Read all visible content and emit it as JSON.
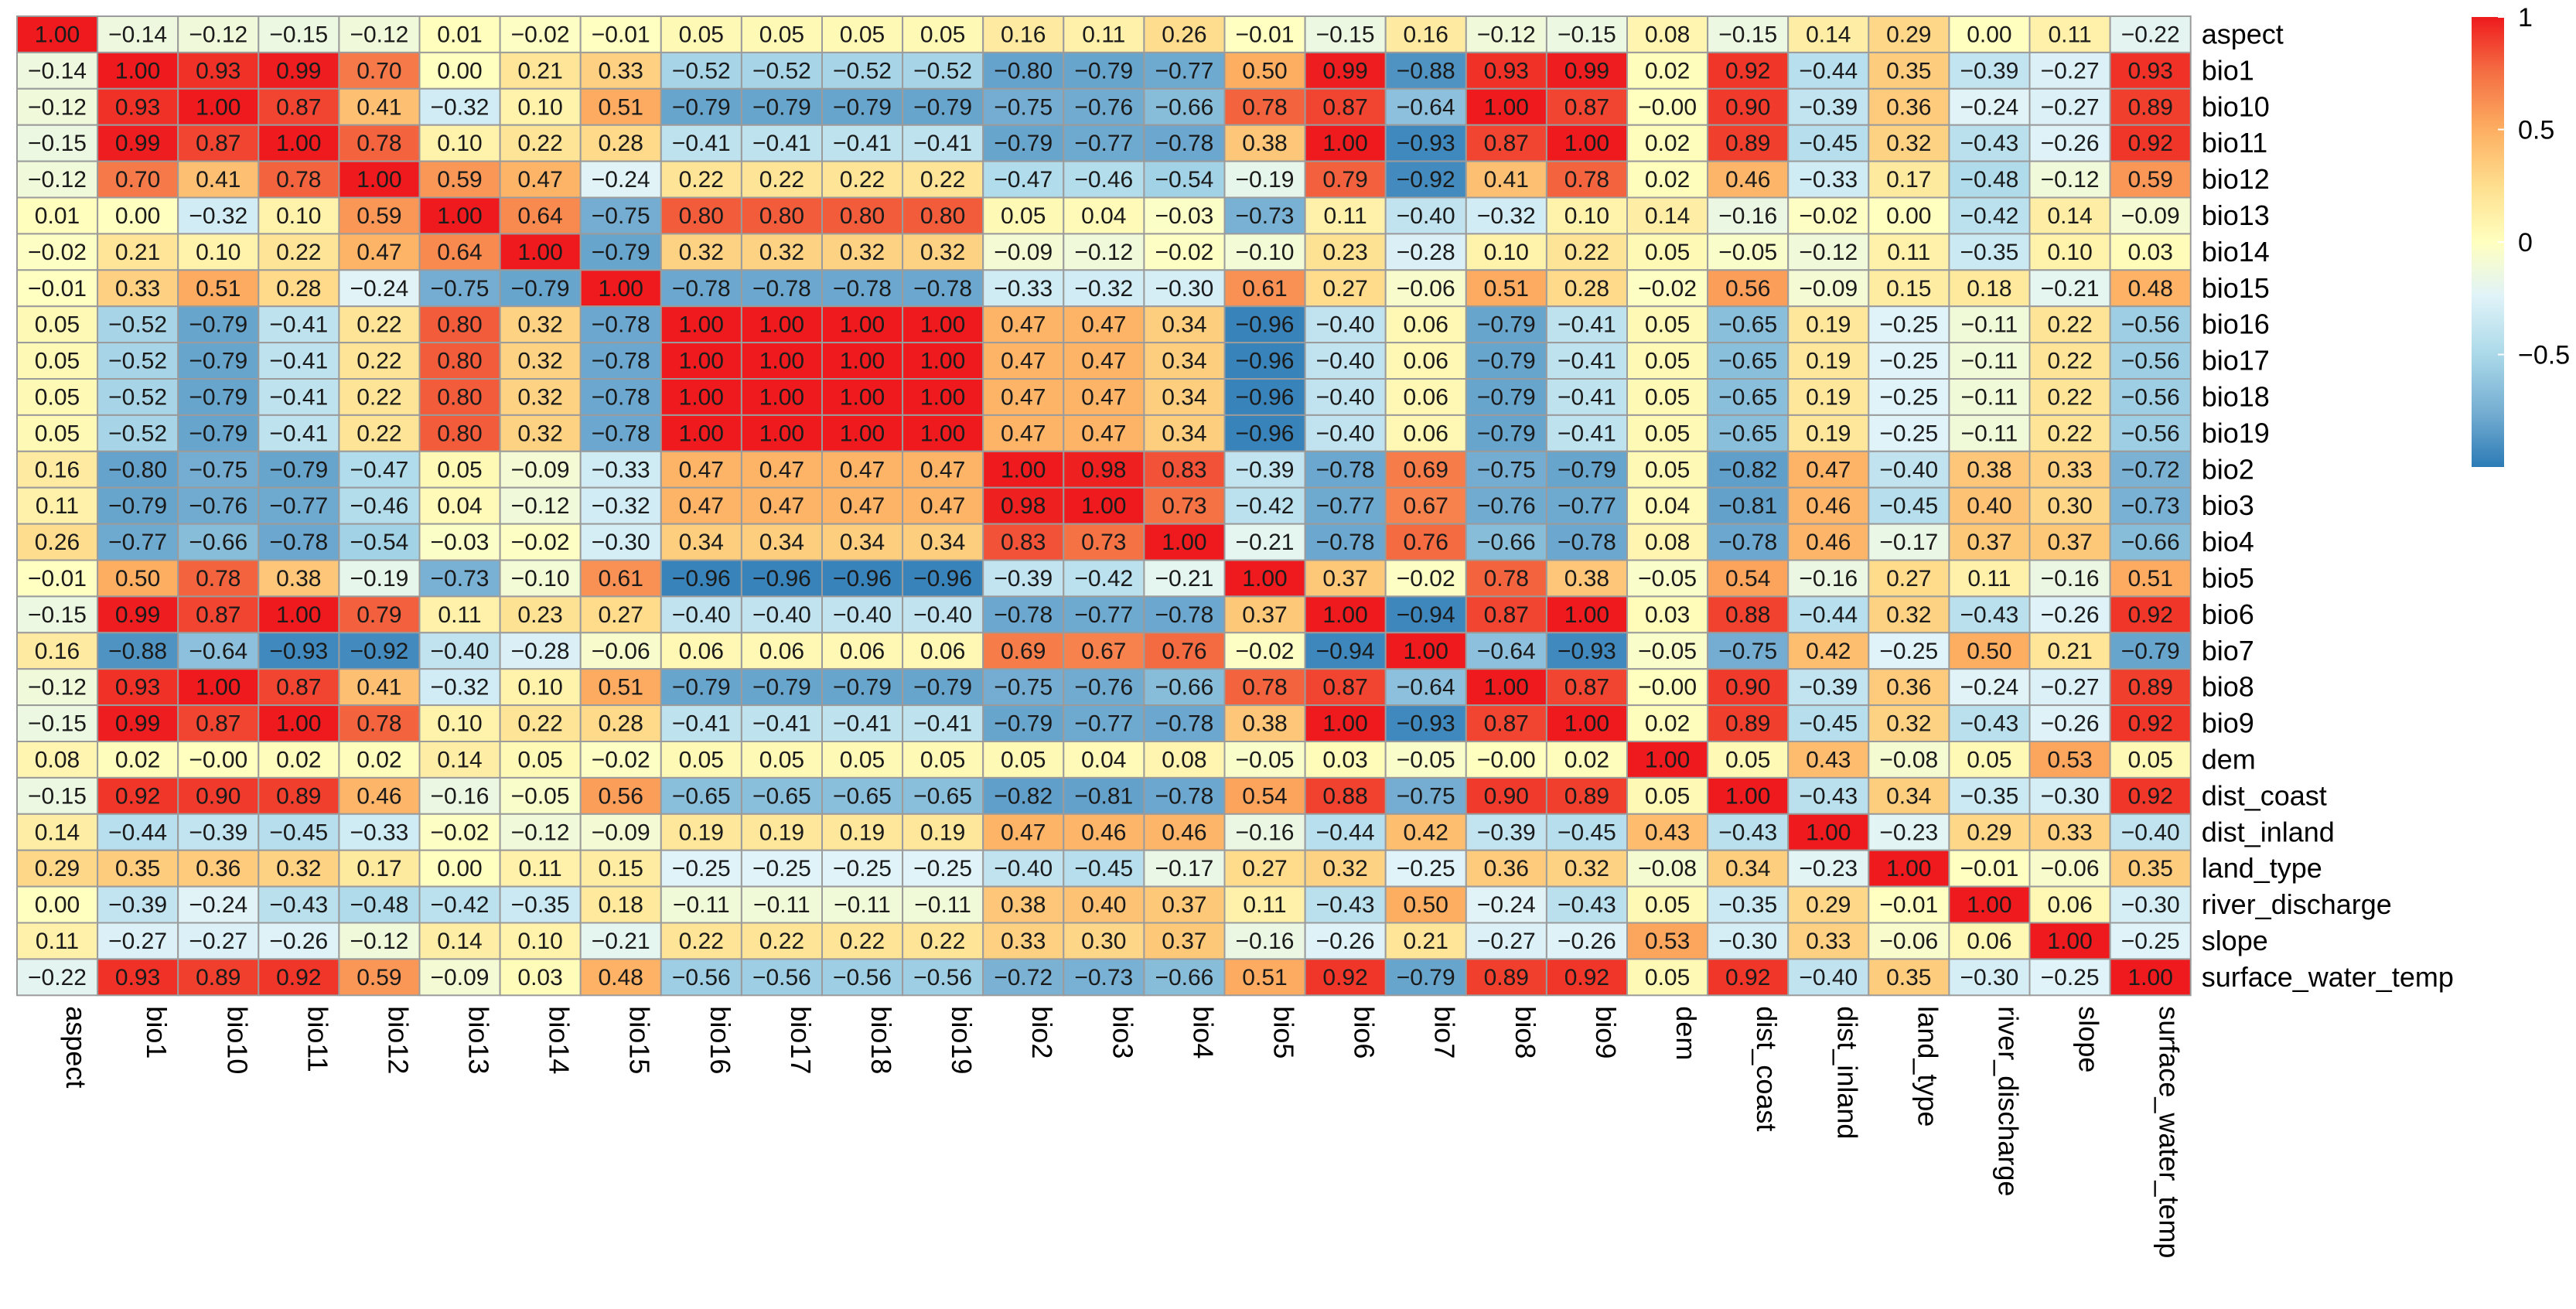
{
  "chart_data": {
    "type": "heatmap",
    "title": "",
    "xlabel": "",
    "ylabel": "",
    "variables": [
      "aspect",
      "bio1",
      "bio10",
      "bio11",
      "bio12",
      "bio13",
      "bio14",
      "bio15",
      "bio16",
      "bio17",
      "bio18",
      "bio19",
      "bio2",
      "bio3",
      "bio4",
      "bio5",
      "bio6",
      "bio7",
      "bio8",
      "bio9",
      "dem",
      "dist_coast",
      "dist_inland",
      "land_type",
      "river_discharge",
      "slope",
      "surface_water_temp"
    ],
    "matrix": [
      [
        1.0,
        -0.14,
        -0.12,
        -0.15,
        -0.12,
        0.01,
        -0.02,
        -0.01,
        0.05,
        0.05,
        0.05,
        0.05,
        0.16,
        0.11,
        0.26,
        -0.01,
        -0.15,
        0.16,
        -0.12,
        -0.15,
        0.08,
        -0.15,
        0.14,
        0.29,
        0.0,
        0.11,
        -0.22
      ],
      [
        -0.14,
        1.0,
        0.93,
        0.99,
        0.7,
        0.0,
        0.21,
        0.33,
        -0.52,
        -0.52,
        -0.52,
        -0.52,
        -0.8,
        -0.79,
        -0.77,
        0.5,
        0.99,
        -0.88,
        0.93,
        0.99,
        0.02,
        0.92,
        -0.44,
        0.35,
        -0.39,
        -0.27,
        0.93
      ],
      [
        -0.12,
        0.93,
        1.0,
        0.87,
        0.41,
        -0.32,
        0.1,
        0.51,
        -0.79,
        -0.79,
        -0.79,
        -0.79,
        -0.75,
        -0.76,
        -0.66,
        0.78,
        0.87,
        -0.64,
        1.0,
        0.87,
        -0.0,
        0.9,
        -0.39,
        0.36,
        -0.24,
        -0.27,
        0.89
      ],
      [
        -0.15,
        0.99,
        0.87,
        1.0,
        0.78,
        0.1,
        0.22,
        0.28,
        -0.41,
        -0.41,
        -0.41,
        -0.41,
        -0.79,
        -0.77,
        -0.78,
        0.38,
        1.0,
        -0.93,
        0.87,
        1.0,
        0.02,
        0.89,
        -0.45,
        0.32,
        -0.43,
        -0.26,
        0.92
      ],
      [
        -0.12,
        0.7,
        0.41,
        0.78,
        1.0,
        0.59,
        0.47,
        -0.24,
        0.22,
        0.22,
        0.22,
        0.22,
        -0.47,
        -0.46,
        -0.54,
        -0.19,
        0.79,
        -0.92,
        0.41,
        0.78,
        0.02,
        0.46,
        -0.33,
        0.17,
        -0.48,
        -0.12,
        0.59
      ],
      [
        0.01,
        0.0,
        -0.32,
        0.1,
        0.59,
        1.0,
        0.64,
        -0.75,
        0.8,
        0.8,
        0.8,
        0.8,
        0.05,
        0.04,
        -0.03,
        -0.73,
        0.11,
        -0.4,
        -0.32,
        0.1,
        0.14,
        -0.16,
        -0.02,
        0.0,
        -0.42,
        0.14,
        -0.09
      ],
      [
        -0.02,
        0.21,
        0.1,
        0.22,
        0.47,
        0.64,
        1.0,
        -0.79,
        0.32,
        0.32,
        0.32,
        0.32,
        -0.09,
        -0.12,
        -0.02,
        -0.1,
        0.23,
        -0.28,
        0.1,
        0.22,
        0.05,
        -0.05,
        -0.12,
        0.11,
        -0.35,
        0.1,
        0.03
      ],
      [
        -0.01,
        0.33,
        0.51,
        0.28,
        -0.24,
        -0.75,
        -0.79,
        1.0,
        -0.78,
        -0.78,
        -0.78,
        -0.78,
        -0.33,
        -0.32,
        -0.3,
        0.61,
        0.27,
        -0.06,
        0.51,
        0.28,
        -0.02,
        0.56,
        -0.09,
        0.15,
        0.18,
        -0.21,
        0.48
      ],
      [
        0.05,
        -0.52,
        -0.79,
        -0.41,
        0.22,
        0.8,
        0.32,
        -0.78,
        1.0,
        1.0,
        1.0,
        1.0,
        0.47,
        0.47,
        0.34,
        -0.96,
        -0.4,
        0.06,
        -0.79,
        -0.41,
        0.05,
        -0.65,
        0.19,
        -0.25,
        -0.11,
        0.22,
        -0.56
      ],
      [
        0.05,
        -0.52,
        -0.79,
        -0.41,
        0.22,
        0.8,
        0.32,
        -0.78,
        1.0,
        1.0,
        1.0,
        1.0,
        0.47,
        0.47,
        0.34,
        -0.96,
        -0.4,
        0.06,
        -0.79,
        -0.41,
        0.05,
        -0.65,
        0.19,
        -0.25,
        -0.11,
        0.22,
        -0.56
      ],
      [
        0.05,
        -0.52,
        -0.79,
        -0.41,
        0.22,
        0.8,
        0.32,
        -0.78,
        1.0,
        1.0,
        1.0,
        1.0,
        0.47,
        0.47,
        0.34,
        -0.96,
        -0.4,
        0.06,
        -0.79,
        -0.41,
        0.05,
        -0.65,
        0.19,
        -0.25,
        -0.11,
        0.22,
        -0.56
      ],
      [
        0.05,
        -0.52,
        -0.79,
        -0.41,
        0.22,
        0.8,
        0.32,
        -0.78,
        1.0,
        1.0,
        1.0,
        1.0,
        0.47,
        0.47,
        0.34,
        -0.96,
        -0.4,
        0.06,
        -0.79,
        -0.41,
        0.05,
        -0.65,
        0.19,
        -0.25,
        -0.11,
        0.22,
        -0.56
      ],
      [
        0.16,
        -0.8,
        -0.75,
        -0.79,
        -0.47,
        0.05,
        -0.09,
        -0.33,
        0.47,
        0.47,
        0.47,
        0.47,
        1.0,
        0.98,
        0.83,
        -0.39,
        -0.78,
        0.69,
        -0.75,
        -0.79,
        0.05,
        -0.82,
        0.47,
        -0.4,
        0.38,
        0.33,
        -0.72
      ],
      [
        0.11,
        -0.79,
        -0.76,
        -0.77,
        -0.46,
        0.04,
        -0.12,
        -0.32,
        0.47,
        0.47,
        0.47,
        0.47,
        0.98,
        1.0,
        0.73,
        -0.42,
        -0.77,
        0.67,
        -0.76,
        -0.77,
        0.04,
        -0.81,
        0.46,
        -0.45,
        0.4,
        0.3,
        -0.73
      ],
      [
        0.26,
        -0.77,
        -0.66,
        -0.78,
        -0.54,
        -0.03,
        -0.02,
        -0.3,
        0.34,
        0.34,
        0.34,
        0.34,
        0.83,
        0.73,
        1.0,
        -0.21,
        -0.78,
        0.76,
        -0.66,
        -0.78,
        0.08,
        -0.78,
        0.46,
        -0.17,
        0.37,
        0.37,
        -0.66
      ],
      [
        -0.01,
        0.5,
        0.78,
        0.38,
        -0.19,
        -0.73,
        -0.1,
        0.61,
        -0.96,
        -0.96,
        -0.96,
        -0.96,
        -0.39,
        -0.42,
        -0.21,
        1.0,
        0.37,
        -0.02,
        0.78,
        0.38,
        -0.05,
        0.54,
        -0.16,
        0.27,
        0.11,
        -0.16,
        0.51
      ],
      [
        -0.15,
        0.99,
        0.87,
        1.0,
        0.79,
        0.11,
        0.23,
        0.27,
        -0.4,
        -0.4,
        -0.4,
        -0.4,
        -0.78,
        -0.77,
        -0.78,
        0.37,
        1.0,
        -0.94,
        0.87,
        1.0,
        0.03,
        0.88,
        -0.44,
        0.32,
        -0.43,
        -0.26,
        0.92
      ],
      [
        0.16,
        -0.88,
        -0.64,
        -0.93,
        -0.92,
        -0.4,
        -0.28,
        -0.06,
        0.06,
        0.06,
        0.06,
        0.06,
        0.69,
        0.67,
        0.76,
        -0.02,
        -0.94,
        1.0,
        -0.64,
        -0.93,
        -0.05,
        -0.75,
        0.42,
        -0.25,
        0.5,
        0.21,
        -0.79
      ],
      [
        -0.12,
        0.93,
        1.0,
        0.87,
        0.41,
        -0.32,
        0.1,
        0.51,
        -0.79,
        -0.79,
        -0.79,
        -0.79,
        -0.75,
        -0.76,
        -0.66,
        0.78,
        0.87,
        -0.64,
        1.0,
        0.87,
        -0.0,
        0.9,
        -0.39,
        0.36,
        -0.24,
        -0.27,
        0.89
      ],
      [
        -0.15,
        0.99,
        0.87,
        1.0,
        0.78,
        0.1,
        0.22,
        0.28,
        -0.41,
        -0.41,
        -0.41,
        -0.41,
        -0.79,
        -0.77,
        -0.78,
        0.38,
        1.0,
        -0.93,
        0.87,
        1.0,
        0.02,
        0.89,
        -0.45,
        0.32,
        -0.43,
        -0.26,
        0.92
      ],
      [
        0.08,
        0.02,
        -0.0,
        0.02,
        0.02,
        0.14,
        0.05,
        -0.02,
        0.05,
        0.05,
        0.05,
        0.05,
        0.05,
        0.04,
        0.08,
        -0.05,
        0.03,
        -0.05,
        -0.0,
        0.02,
        1.0,
        0.05,
        0.43,
        -0.08,
        0.05,
        0.53,
        0.05
      ],
      [
        -0.15,
        0.92,
        0.9,
        0.89,
        0.46,
        -0.16,
        -0.05,
        0.56,
        -0.65,
        -0.65,
        -0.65,
        -0.65,
        -0.82,
        -0.81,
        -0.78,
        0.54,
        0.88,
        -0.75,
        0.9,
        0.89,
        0.05,
        1.0,
        -0.43,
        0.34,
        -0.35,
        -0.3,
        0.92
      ],
      [
        0.14,
        -0.44,
        -0.39,
        -0.45,
        -0.33,
        -0.02,
        -0.12,
        -0.09,
        0.19,
        0.19,
        0.19,
        0.19,
        0.47,
        0.46,
        0.46,
        -0.16,
        -0.44,
        0.42,
        -0.39,
        -0.45,
        0.43,
        -0.43,
        1.0,
        -0.23,
        0.29,
        0.33,
        -0.4
      ],
      [
        0.29,
        0.35,
        0.36,
        0.32,
        0.17,
        0.0,
        0.11,
        0.15,
        -0.25,
        -0.25,
        -0.25,
        -0.25,
        -0.4,
        -0.45,
        -0.17,
        0.27,
        0.32,
        -0.25,
        0.36,
        0.32,
        -0.08,
        0.34,
        -0.23,
        1.0,
        -0.01,
        -0.06,
        0.35
      ],
      [
        0.0,
        -0.39,
        -0.24,
        -0.43,
        -0.48,
        -0.42,
        -0.35,
        0.18,
        -0.11,
        -0.11,
        -0.11,
        -0.11,
        0.38,
        0.4,
        0.37,
        0.11,
        -0.43,
        0.5,
        -0.24,
        -0.43,
        0.05,
        -0.35,
        0.29,
        -0.01,
        1.0,
        0.06,
        -0.3
      ],
      [
        0.11,
        -0.27,
        -0.27,
        -0.26,
        -0.12,
        0.14,
        0.1,
        -0.21,
        0.22,
        0.22,
        0.22,
        0.22,
        0.33,
        0.3,
        0.37,
        -0.16,
        -0.26,
        0.21,
        -0.27,
        -0.26,
        0.53,
        -0.3,
        0.33,
        -0.06,
        0.06,
        1.0,
        -0.25
      ],
      [
        -0.22,
        0.93,
        0.89,
        0.92,
        0.59,
        -0.09,
        0.03,
        0.48,
        -0.56,
        -0.56,
        -0.56,
        -0.56,
        -0.72,
        -0.73,
        -0.66,
        0.51,
        0.92,
        -0.79,
        0.89,
        0.92,
        0.05,
        0.92,
        -0.4,
        0.35,
        -0.3,
        -0.25,
        1.0
      ]
    ],
    "value_range": [
      -1,
      1
    ],
    "color_scale": {
      "low": "#2166ac",
      "mid": "#ffffbf",
      "high": "#ee1a1d"
    },
    "legend": {
      "position": "right",
      "ticks": [
        1,
        0.5,
        0,
        -0.5
      ],
      "tick_labels": [
        "1",
        "0.5",
        "0",
        "−0.5"
      ]
    },
    "grid": true
  }
}
